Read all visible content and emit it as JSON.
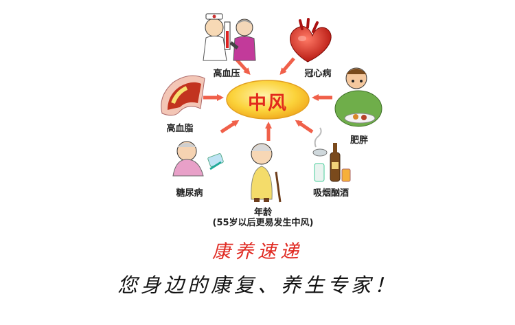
{
  "diagram": {
    "center": "中风",
    "factors": {
      "hypertension": "高血压",
      "heart_disease": "冠心病",
      "hyperlipidemia": "高血脂",
      "obesity": "肥胖",
      "diabetes": "糖尿病",
      "age": "年龄",
      "age_note": "(55岁以后更易发生中风)",
      "smoking_drinking": "吸烟酗酒"
    }
  },
  "brand": {
    "name": "康养速递",
    "slogan": "您身边的康复、养生专家！"
  },
  "colors": {
    "arrow": "#f0604a",
    "center_fill": "#fbd23a",
    "center_text": "#e22a1c",
    "brand_text": "#e02a22"
  }
}
